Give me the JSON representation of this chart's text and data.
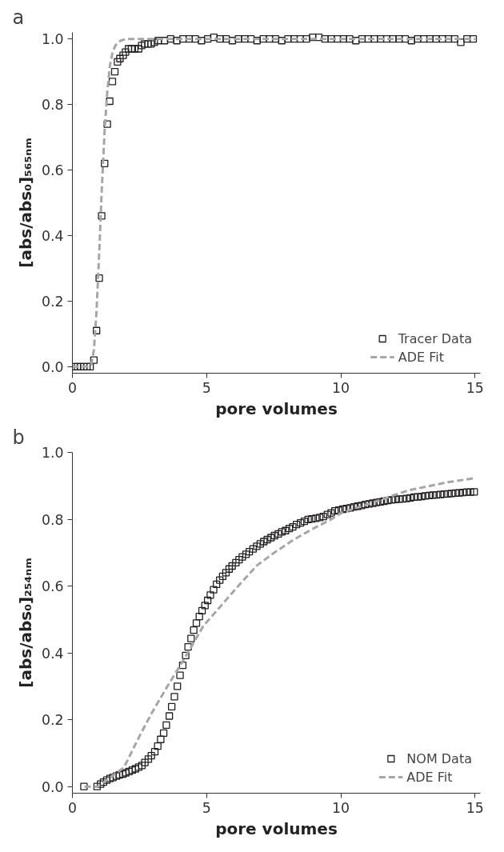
{
  "chart_data": [
    {
      "type": "scatter",
      "annotations": [
        "a"
      ],
      "xlabel": "pore volumes",
      "ylabel": "[abs/abs₀]₅₆₅ₙₘ",
      "xlim": [
        0,
        15.2
      ],
      "ylim": [
        -0.02,
        1.02
      ],
      "xticks": [
        0,
        5,
        10,
        15
      ],
      "yticks": [
        {
          "value": 0,
          "label": "0.0"
        },
        {
          "value": 0.2,
          "label": "0.2"
        },
        {
          "value": 0.4,
          "label": "0.4"
        },
        {
          "value": 0.6,
          "label": "0.6"
        },
        {
          "value": 0.8,
          "label": "0.8"
        },
        {
          "value": 1,
          "label": "1.0"
        }
      ],
      "legend": "bottom right",
      "series": [
        {
          "name": "Tracer Data",
          "type": "scatter",
          "marker": "square",
          "color": "#231f20",
          "x": [
            0.07,
            0.19,
            0.3,
            0.42,
            0.54,
            0.66,
            0.8,
            0.9,
            1.0,
            1.09,
            1.2,
            1.3,
            1.39,
            1.49,
            1.58,
            1.68,
            1.77,
            1.89,
            1.98,
            2.09,
            2.2,
            2.32,
            2.47,
            2.58,
            2.69,
            2.82,
            2.93,
            3.05,
            3.2,
            3.43,
            3.66,
            3.89,
            4.12,
            4.35,
            4.58,
            4.81,
            5.04,
            5.27,
            5.5,
            5.73,
            5.96,
            6.19,
            6.42,
            6.65,
            6.88,
            7.11,
            7.34,
            7.57,
            7.8,
            8.03,
            8.26,
            8.49,
            8.72,
            8.95,
            9.18,
            9.41,
            9.64,
            9.87,
            10.1,
            10.33,
            10.56,
            10.79,
            11.02,
            11.25,
            11.48,
            11.71,
            11.94,
            12.17,
            12.4,
            12.63,
            12.86,
            13.09,
            13.32,
            13.55,
            13.78,
            14.01,
            14.24,
            14.47,
            14.7,
            14.93
          ],
          "values": [
            0,
            0,
            0,
            0,
            0,
            0,
            0.02,
            0.11,
            0.27,
            0.46,
            0.62,
            0.74,
            0.81,
            0.87,
            0.9,
            0.93,
            0.94,
            0.95,
            0.96,
            0.97,
            0.97,
            0.97,
            0.97,
            0.98,
            0.985,
            0.985,
            0.985,
            0.99,
            0.995,
            0.995,
            1.0,
            0.995,
            1.0,
            1.0,
            1.0,
            0.995,
            1.0,
            1.005,
            1.0,
            1.0,
            0.995,
            1.0,
            1.0,
            1.0,
            0.995,
            1.0,
            1.0,
            1.0,
            0.995,
            1.0,
            1.0,
            1.0,
            1.0,
            1.005,
            1.005,
            1.0,
            1.0,
            1.0,
            1.0,
            1.0,
            0.995,
            1.0,
            1.0,
            1.0,
            1.0,
            1.0,
            1.0,
            1.0,
            1.0,
            0.995,
            1.0,
            1.0,
            1.0,
            1.0,
            1.0,
            1.0,
            1.0,
            0.99,
            1.0,
            1.0
          ]
        },
        {
          "name": "ADE Fit",
          "type": "line",
          "line_style": "dashed",
          "color": "#a6a6a6",
          "x": [
            0,
            0.6,
            0.7,
            0.8,
            0.9,
            1.0,
            1.1,
            1.2,
            1.3,
            1.4,
            1.5,
            1.6,
            1.8,
            2.0,
            15
          ],
          "values": [
            0,
            0,
            0.005,
            0.05,
            0.17,
            0.35,
            0.55,
            0.72,
            0.84,
            0.92,
            0.96,
            0.98,
            0.995,
            1.0,
            1.0
          ]
        }
      ]
    },
    {
      "type": "scatter",
      "annotations": [
        "b"
      ],
      "xlabel": "pore volumes",
      "ylabel": "[abs/abs₀]₂₅₄ₙₘ",
      "xlim": [
        0,
        15.2
      ],
      "ylim": [
        -0.02,
        1.0
      ],
      "xticks": [
        0,
        5,
        10,
        15
      ],
      "yticks": [
        {
          "value": 0,
          "label": "0.0"
        },
        {
          "value": 0.2,
          "label": "0.2"
        },
        {
          "value": 0.4,
          "label": "0.4"
        },
        {
          "value": 0.6,
          "label": "0.6"
        },
        {
          "value": 0.8,
          "label": "0.8"
        },
        {
          "value": 1,
          "label": "1.0"
        }
      ],
      "legend": "bottom right",
      "series": [
        {
          "name": "NOM Data",
          "type": "scatter",
          "marker": "square",
          "color": "#231f20",
          "x": [
            0.43,
            0.92,
            1.05,
            1.16,
            1.28,
            1.4,
            1.51,
            1.64,
            1.75,
            1.88,
            1.99,
            2.11,
            2.23,
            2.35,
            2.47,
            2.59,
            2.7,
            2.83,
            2.94,
            3.07,
            3.18,
            3.29,
            3.4,
            3.5,
            3.61,
            3.7,
            3.8,
            3.91,
            4.01,
            4.11,
            4.22,
            4.31,
            4.42,
            4.52,
            4.62,
            4.73,
            4.83,
            4.94,
            5.04,
            5.14,
            5.26,
            5.37,
            5.49,
            5.6,
            5.72,
            5.84,
            5.95,
            6.09,
            6.21,
            6.33,
            6.47,
            6.59,
            6.73,
            6.87,
            7.0,
            7.13,
            7.26,
            7.4,
            7.53,
            7.67,
            7.8,
            7.94,
            8.08,
            8.21,
            8.35,
            8.5,
            8.64,
            8.78,
            8.92,
            9.07,
            9.21,
            9.35,
            9.5,
            9.64,
            9.78,
            9.92,
            10.07,
            10.21,
            10.35,
            10.49,
            10.63,
            10.77,
            10.91,
            11.05,
            11.19,
            11.33,
            11.47,
            11.61,
            11.75,
            11.89,
            12.03,
            12.17,
            12.31,
            12.45,
            12.59,
            12.73,
            12.87,
            13.01,
            13.15,
            13.29,
            13.43,
            13.57,
            13.71,
            13.85,
            13.99,
            14.13,
            14.27,
            14.41,
            14.55,
            14.69,
            14.83,
            14.97
          ],
          "values": [
            0,
            0,
            0.007,
            0.013,
            0.019,
            0.024,
            0.027,
            0.031,
            0.035,
            0.037,
            0.041,
            0.045,
            0.049,
            0.053,
            0.058,
            0.063,
            0.072,
            0.082,
            0.092,
            0.104,
            0.121,
            0.141,
            0.16,
            0.184,
            0.211,
            0.239,
            0.269,
            0.3,
            0.333,
            0.363,
            0.392,
            0.418,
            0.443,
            0.468,
            0.489,
            0.509,
            0.526,
            0.542,
            0.557,
            0.573,
            0.589,
            0.605,
            0.618,
            0.629,
            0.64,
            0.651,
            0.66,
            0.67,
            0.679,
            0.687,
            0.695,
            0.703,
            0.711,
            0.719,
            0.726,
            0.733,
            0.739,
            0.745,
            0.751,
            0.756,
            0.762,
            0.766,
            0.772,
            0.777,
            0.784,
            0.789,
            0.794,
            0.799,
            0.801,
            0.803,
            0.805,
            0.808,
            0.814,
            0.819,
            0.825,
            0.827,
            0.83,
            0.832,
            0.834,
            0.837,
            0.839,
            0.841,
            0.844,
            0.846,
            0.848,
            0.85,
            0.852,
            0.854,
            0.856,
            0.858,
            0.859,
            0.86,
            0.861,
            0.862,
            0.864,
            0.866,
            0.867,
            0.868,
            0.87,
            0.871,
            0.872,
            0.873,
            0.874,
            0.875,
            0.876,
            0.877,
            0.878,
            0.879,
            0.88,
            0.881,
            0.881,
            0.882
          ]
        },
        {
          "name": "ADE Fit",
          "type": "line",
          "line_style": "dashed",
          "color": "#a6a6a6",
          "x": [
            0.45,
            0.95,
            1.92,
            2.5,
            2.97,
            3.54,
            4.02,
            4.4,
            4.88,
            5.35,
            5.83,
            6.3,
            6.88,
            7.54,
            8.21,
            8.97,
            9.65,
            10.02,
            11.08,
            12.5,
            13.93,
            15.0
          ],
          "values": [
            0,
            0,
            0.057,
            0.151,
            0.222,
            0.3,
            0.363,
            0.414,
            0.481,
            0.524,
            0.568,
            0.611,
            0.662,
            0.701,
            0.737,
            0.772,
            0.8,
            0.819,
            0.847,
            0.886,
            0.91,
            0.923
          ]
        }
      ]
    }
  ]
}
